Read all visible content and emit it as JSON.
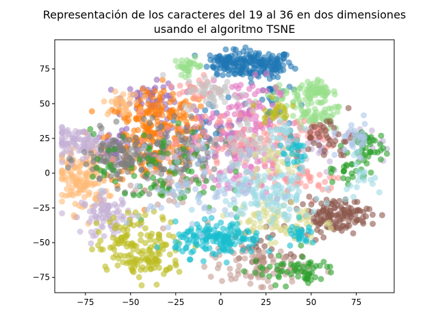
{
  "chart_data": {
    "type": "scatter",
    "title": "Representación de los caracteres del 19 al 36 en dos dimensiones",
    "subtitle": "usando el algoritmo TSNE",
    "xlabel": "",
    "ylabel": "",
    "xlim": [
      -92,
      96
    ],
    "ylim": [
      -86,
      96
    ],
    "xticks": [
      -75,
      -50,
      -25,
      0,
      25,
      50,
      75
    ],
    "yticks": [
      -75,
      -50,
      -25,
      0,
      25,
      50,
      75
    ],
    "xtick_labels": [
      "−75",
      "−50",
      "−25",
      "0",
      "25",
      "50",
      "75"
    ],
    "ytick_labels": [
      "−75",
      "−50",
      "−25",
      "0",
      "25",
      "50",
      "75"
    ],
    "grid": false,
    "legend": "none",
    "point_alpha": 0.6,
    "clusters": [
      {
        "color": "#1f77b4",
        "center": [
          20,
          78
        ],
        "spread": [
          10,
          5
        ],
        "count": 150
      },
      {
        "color": "#1f77b4",
        "center": [
          3,
          80
        ],
        "spread": [
          5,
          4
        ],
        "count": 60
      },
      {
        "color": "#1f77b4",
        "center": [
          28,
          52
        ],
        "spread": [
          6,
          10
        ],
        "count": 25
      },
      {
        "color": "#1f77b4",
        "center": [
          -3,
          36
        ],
        "spread": [
          8,
          8
        ],
        "count": 30
      },
      {
        "color": "#98df8a",
        "center": [
          -18,
          77
        ],
        "spread": [
          4,
          3
        ],
        "count": 30
      },
      {
        "color": "#98df8a",
        "center": [
          52,
          58
        ],
        "spread": [
          6,
          4
        ],
        "count": 60
      },
      {
        "color": "#98df8a",
        "center": [
          52,
          40
        ],
        "spread": [
          8,
          5
        ],
        "count": 60
      },
      {
        "color": "#98df8a",
        "center": [
          35,
          55
        ],
        "spread": [
          6,
          4
        ],
        "count": 20
      },
      {
        "color": "#9467bd",
        "center": [
          -38,
          55
        ],
        "spread": [
          8,
          5
        ],
        "count": 50
      },
      {
        "color": "#9467bd",
        "center": [
          -57,
          20
        ],
        "spread": [
          8,
          5
        ],
        "count": 35
      },
      {
        "color": "#9467bd",
        "center": [
          -20,
          30
        ],
        "spread": [
          15,
          10
        ],
        "count": 40
      },
      {
        "color": "#ff7f0e",
        "center": [
          -40,
          25
        ],
        "spread": [
          12,
          18
        ],
        "count": 200
      },
      {
        "color": "#ff7f0e",
        "center": [
          -30,
          45
        ],
        "spread": [
          8,
          8
        ],
        "count": 50
      },
      {
        "color": "#ffbb78",
        "center": [
          -77,
          -5
        ],
        "spread": [
          7,
          12
        ],
        "count": 140
      },
      {
        "color": "#ffbb78",
        "center": [
          -55,
          50
        ],
        "spread": [
          5,
          4
        ],
        "count": 30
      },
      {
        "color": "#c5b0d5",
        "center": [
          -78,
          22
        ],
        "spread": [
          10,
          5
        ],
        "count": 90
      },
      {
        "color": "#c5b0d5",
        "center": [
          -63,
          -30
        ],
        "spread": [
          7,
          7
        ],
        "count": 80
      },
      {
        "color": "#c5b0d5",
        "center": [
          60,
          20
        ],
        "spread": [
          15,
          8
        ],
        "count": 40
      },
      {
        "color": "#7f7f7f",
        "center": [
          -53,
          10
        ],
        "spread": [
          12,
          10
        ],
        "count": 140
      },
      {
        "color": "#7f7f7f",
        "center": [
          -20,
          15
        ],
        "spread": [
          12,
          10
        ],
        "count": 80
      },
      {
        "color": "#e377c2",
        "center": [
          12,
          40
        ],
        "spread": [
          10,
          15
        ],
        "count": 120
      },
      {
        "color": "#e377c2",
        "center": [
          10,
          0
        ],
        "spread": [
          10,
          10
        ],
        "count": 60
      },
      {
        "color": "#ff9896",
        "center": [
          0,
          25
        ],
        "spread": [
          18,
          10
        ],
        "count": 70
      },
      {
        "color": "#ff9896",
        "center": [
          -12,
          60
        ],
        "spread": [
          6,
          5
        ],
        "count": 30
      },
      {
        "color": "#ff9896",
        "center": [
          45,
          30
        ],
        "spread": [
          12,
          6
        ],
        "count": 40
      },
      {
        "color": "#ff9896",
        "center": [
          48,
          -5
        ],
        "spread": [
          10,
          6
        ],
        "count": 40
      },
      {
        "color": "#c7c7c7",
        "center": [
          -5,
          58
        ],
        "spread": [
          8,
          6
        ],
        "count": 50
      },
      {
        "color": "#c7c7c7",
        "center": [
          20,
          20
        ],
        "spread": [
          10,
          12
        ],
        "count": 60
      },
      {
        "color": "#8c564b",
        "center": [
          63,
          -30
        ],
        "spread": [
          10,
          6
        ],
        "count": 130
      },
      {
        "color": "#8c564b",
        "center": [
          58,
          25
        ],
        "spread": [
          8,
          8
        ],
        "count": 40
      },
      {
        "color": "#8c564b",
        "center": [
          20,
          -55
        ],
        "spread": [
          10,
          8
        ],
        "count": 30
      },
      {
        "color": "#c49c94",
        "center": [
          20,
          -68
        ],
        "spread": [
          14,
          7
        ],
        "count": 80
      },
      {
        "color": "#c49c94",
        "center": [
          -30,
          -10
        ],
        "spread": [
          10,
          10
        ],
        "count": 30
      },
      {
        "color": "#2ca02c",
        "center": [
          80,
          20
        ],
        "spread": [
          5,
          6
        ],
        "count": 40
      },
      {
        "color": "#2ca02c",
        "center": [
          40,
          -70
        ],
        "spread": [
          12,
          5
        ],
        "count": 60
      },
      {
        "color": "#2ca02c",
        "center": [
          -35,
          0
        ],
        "spread": [
          18,
          15
        ],
        "count": 80
      },
      {
        "color": "#2ca02c",
        "center": [
          70,
          5
        ],
        "spread": [
          6,
          10
        ],
        "count": 25
      },
      {
        "color": "#bcbd22",
        "center": [
          -45,
          -50
        ],
        "spread": [
          12,
          10
        ],
        "count": 120
      },
      {
        "color": "#bcbd22",
        "center": [
          -40,
          -65
        ],
        "spread": [
          7,
          5
        ],
        "count": 40
      },
      {
        "color": "#bcbd22",
        "center": [
          30,
          45
        ],
        "spread": [
          4,
          4
        ],
        "count": 25
      },
      {
        "color": "#dbdb8d",
        "center": [
          30,
          -35
        ],
        "spread": [
          12,
          8
        ],
        "count": 80
      },
      {
        "color": "#dbdb8d",
        "center": [
          30,
          10
        ],
        "spread": [
          8,
          8
        ],
        "count": 30
      },
      {
        "color": "#17becf",
        "center": [
          -1,
          -48
        ],
        "spread": [
          12,
          6
        ],
        "count": 150
      },
      {
        "color": "#17becf",
        "center": [
          45,
          -45
        ],
        "spread": [
          4,
          4
        ],
        "count": 25
      },
      {
        "color": "#17becf",
        "center": [
          40,
          15
        ],
        "spread": [
          4,
          6
        ],
        "count": 25
      },
      {
        "color": "#9edae5",
        "center": [
          25,
          -15
        ],
        "spread": [
          15,
          10
        ],
        "count": 120
      },
      {
        "color": "#9edae5",
        "center": [
          35,
          30
        ],
        "spread": [
          4,
          3
        ],
        "count": 20
      },
      {
        "color": "#9edae5",
        "center": [
          75,
          0
        ],
        "spread": [
          4,
          8
        ],
        "count": 20
      },
      {
        "color": "#aec7e8",
        "center": [
          -10,
          -10
        ],
        "spread": [
          20,
          15
        ],
        "count": 80
      },
      {
        "color": "#aec7e8",
        "center": [
          75,
          25
        ],
        "spread": [
          5,
          6
        ],
        "count": 30
      }
    ]
  }
}
